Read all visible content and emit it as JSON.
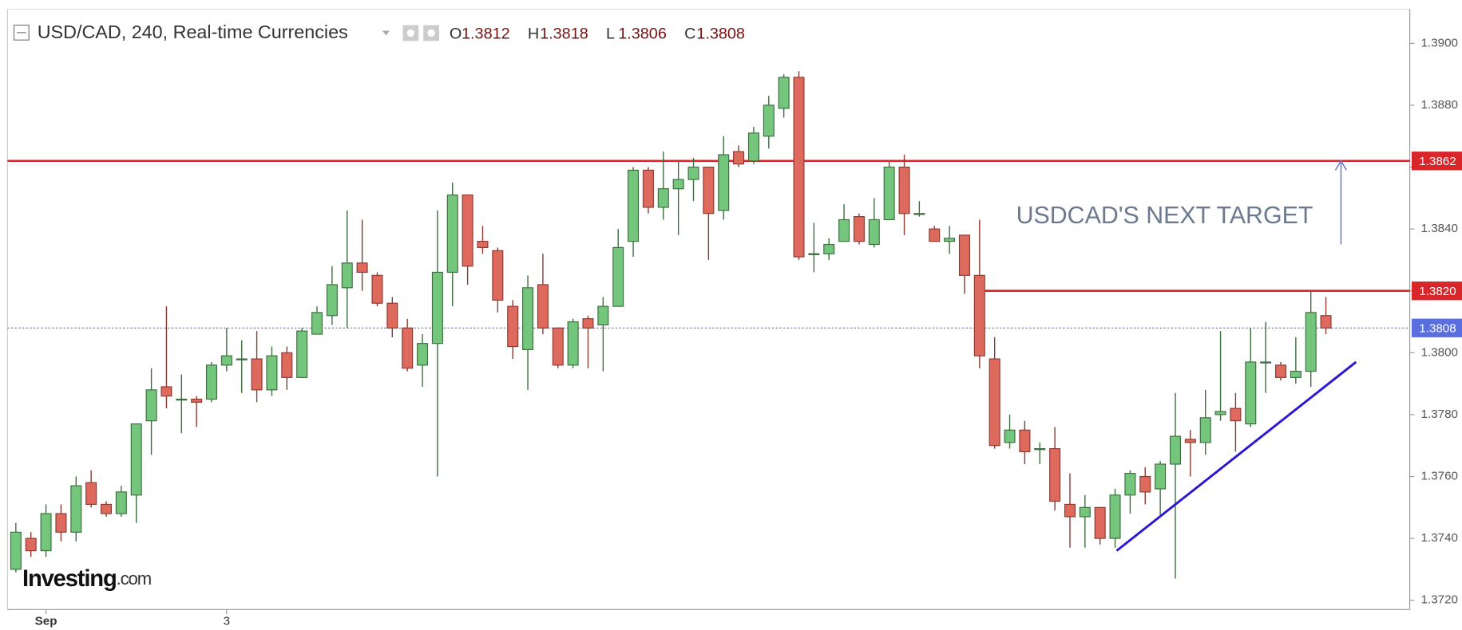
{
  "chart_data": {
    "type": "candlestick",
    "title": "USD/CAD, 240, Real-time Currencies",
    "ohlc_header": [
      {
        "label": "O",
        "value": 1.3812
      },
      {
        "label": "H",
        "value": 1.3818
      },
      {
        "label": "L",
        "value": 1.3806
      },
      {
        "label": "C",
        "value": 1.3808
      }
    ],
    "categories": [
      null,
      null,
      "Sep",
      null,
      null,
      null,
      null,
      null,
      null,
      null,
      null,
      null,
      null,
      null,
      "3",
      null,
      null,
      null,
      null,
      null,
      null,
      null,
      null,
      null,
      null,
      null,
      null,
      null,
      null,
      null,
      null,
      null,
      null,
      null,
      null,
      null,
      null,
      null,
      null,
      null,
      null,
      null,
      null,
      null,
      null,
      null,
      null,
      null,
      null,
      null,
      null,
      null,
      null,
      null,
      null,
      null,
      null,
      null,
      null,
      null,
      null,
      null,
      null,
      null,
      null,
      null,
      null,
      null,
      null,
      null,
      null,
      null,
      null,
      null,
      null,
      null,
      null,
      null,
      null,
      null,
      null,
      null,
      null,
      null,
      null,
      null,
      null,
      null
    ],
    "open": [
      1.373,
      1.374,
      1.3736,
      1.3748,
      1.3742,
      1.3758,
      1.3751,
      1.3748,
      1.3754,
      1.3778,
      1.3789,
      1.3785,
      1.3785,
      1.3785,
      1.3796,
      1.3798,
      1.3798,
      1.3788,
      1.38,
      1.3792,
      1.3806,
      1.3812,
      1.3821,
      1.3829,
      1.3825,
      1.3816,
      1.3808,
      1.3796,
      1.3803,
      1.3826,
      1.3851,
      1.3836,
      1.3833,
      1.3815,
      1.3801,
      1.3822,
      1.3808,
      1.3796,
      1.3811,
      1.3809,
      1.3815,
      1.3836,
      1.3859,
      1.3847,
      1.3853,
      1.3856,
      1.386,
      1.3846,
      1.3865,
      1.3862,
      1.387,
      1.3879,
      1.3889,
      1.3832,
      1.3832,
      1.3836,
      1.3844,
      1.3835,
      1.3843,
      1.386,
      1.3845,
      1.384,
      1.3836,
      1.3838,
      1.3825,
      1.3798,
      1.3771,
      1.3775,
      1.3769,
      1.3769,
      1.3751,
      1.3747,
      1.375,
      1.374,
      1.3754,
      1.376,
      1.3756,
      1.3764,
      1.3772,
      1.3771,
      1.378,
      1.3782,
      1.3777,
      1.3797,
      1.3796,
      1.3792,
      1.3794,
      1.3812
    ],
    "high": [
      1.3745,
      1.3742,
      1.3751,
      1.3751,
      1.376,
      1.3762,
      1.3752,
      1.3757,
      1.3777,
      1.3795,
      1.3815,
      1.3793,
      1.3786,
      1.3797,
      1.3808,
      1.3804,
      1.3807,
      1.3802,
      1.3802,
      1.3808,
      1.3815,
      1.3828,
      1.3846,
      1.3843,
      1.3826,
      1.3818,
      1.3811,
      1.3806,
      1.3846,
      1.3855,
      1.3851,
      1.3841,
      1.3834,
      1.3817,
      1.3825,
      1.3832,
      1.3808,
      1.3811,
      1.3812,
      1.3818,
      1.384,
      1.386,
      1.386,
      1.3865,
      1.3862,
      1.3863,
      1.386,
      1.387,
      1.3867,
      1.3873,
      1.3883,
      1.389,
      1.3891,
      1.3842,
      1.3837,
      1.3848,
      1.3845,
      1.385,
      1.3862,
      1.3864,
      1.3849,
      1.3841,
      1.3841,
      1.3838,
      1.3843,
      1.3805,
      1.378,
      1.3778,
      1.3771,
      1.3776,
      1.3761,
      1.3754,
      1.375,
      1.3756,
      1.3762,
      1.3763,
      1.3765,
      1.3787,
      1.3775,
      1.3788,
      1.3807,
      1.3787,
      1.3808,
      1.381,
      1.3797,
      1.3805,
      1.382,
      1.3818
    ],
    "low": [
      1.3729,
      1.3734,
      1.3734,
      1.3739,
      1.3739,
      1.375,
      1.3747,
      1.3747,
      1.3745,
      1.3767,
      1.3782,
      1.3774,
      1.3776,
      1.3784,
      1.3794,
      1.3787,
      1.3784,
      1.3786,
      1.3788,
      1.3792,
      1.3806,
      1.3809,
      1.3808,
      1.382,
      1.3815,
      1.3805,
      1.3794,
      1.3789,
      1.376,
      1.3815,
      1.3822,
      1.3832,
      1.3813,
      1.3798,
      1.3788,
      1.3806,
      1.3795,
      1.3795,
      1.3795,
      1.3794,
      1.3815,
      1.3831,
      1.3845,
      1.3843,
      1.3838,
      1.3849,
      1.383,
      1.3843,
      1.386,
      1.3861,
      1.3866,
      1.3876,
      1.383,
      1.3826,
      1.383,
      1.3836,
      1.3835,
      1.3834,
      1.3843,
      1.3838,
      1.3844,
      1.3836,
      1.3832,
      1.3819,
      1.3795,
      1.3769,
      1.3769,
      1.3764,
      1.3764,
      1.3749,
      1.3737,
      1.3737,
      1.3738,
      1.3737,
      1.3748,
      1.3751,
      1.3747,
      1.3727,
      1.376,
      1.3767,
      1.3778,
      1.3768,
      1.3776,
      1.3787,
      1.3791,
      1.379,
      1.3789,
      1.3806
    ],
    "close": [
      1.3742,
      1.3736,
      1.3748,
      1.3742,
      1.3757,
      1.3751,
      1.3748,
      1.3755,
      1.3777,
      1.3788,
      1.3786,
      1.3785,
      1.3784,
      1.3796,
      1.3799,
      1.3798,
      1.3788,
      1.3799,
      1.3792,
      1.3807,
      1.3813,
      1.3822,
      1.3829,
      1.3826,
      1.3816,
      1.3808,
      1.3795,
      1.3803,
      1.3826,
      1.3851,
      1.3828,
      1.3834,
      1.3817,
      1.3802,
      1.3821,
      1.3808,
      1.3796,
      1.381,
      1.3808,
      1.3815,
      1.3834,
      1.3859,
      1.3847,
      1.3853,
      1.3856,
      1.386,
      1.3845,
      1.3864,
      1.3861,
      1.3871,
      1.388,
      1.3889,
      1.3831,
      1.3832,
      1.3835,
      1.3843,
      1.3836,
      1.3843,
      1.386,
      1.3845,
      1.3845,
      1.3836,
      1.3837,
      1.3825,
      1.3799,
      1.377,
      1.3775,
      1.3768,
      1.3769,
      1.3752,
      1.3747,
      1.375,
      1.374,
      1.3754,
      1.3761,
      1.3755,
      1.3764,
      1.3773,
      1.3771,
      1.3779,
      1.3781,
      1.3778,
      1.3797,
      1.3797,
      1.3792,
      1.3794,
      1.3813,
      1.3808
    ],
    "up_color": "#74c67c",
    "down_color": "#de6a5e",
    "ylim": [
      1.3717,
      1.3911
    ],
    "yticks": [
      {
        "value": 1.372,
        "label": "1.3720"
      },
      {
        "value": 1.374,
        "label": "1.3740"
      },
      {
        "value": 1.376,
        "label": "1.3760"
      },
      {
        "value": 1.378,
        "label": "1.3780"
      },
      {
        "value": 1.38,
        "label": "1.3800"
      },
      {
        "value": 1.382,
        "label": "1.3820"
      },
      {
        "value": 1.384,
        "label": "1.3840"
      },
      {
        "value": 1.386,
        "label": "1.3860"
      },
      {
        "value": 1.388,
        "label": "1.3880"
      },
      {
        "value": 1.39,
        "label": "1.3900"
      }
    ],
    "levels": [
      {
        "value": 1.3862,
        "label": "1.3862",
        "color": "#d9262b",
        "start_index": 0
      },
      {
        "value": 1.382,
        "label": "1.3820",
        "color": "#d9262b",
        "start_index": 64
      },
      {
        "value": 1.3808,
        "label": "1.3808",
        "color": "#5b6ee0",
        "start_index": 0,
        "dotted": true
      }
    ],
    "annotation": "USDCAD'S NEXT TARGET",
    "arrow": {
      "x": 88.0,
      "y": [
        1.3835,
        1.3862
      ]
    },
    "trendline": {
      "x": [
        73.1,
        89.0
      ],
      "y": [
        1.3736,
        1.3797
      ],
      "color": "#2b17d6"
    },
    "brand": [
      "Investing",
      ".com"
    ]
  }
}
